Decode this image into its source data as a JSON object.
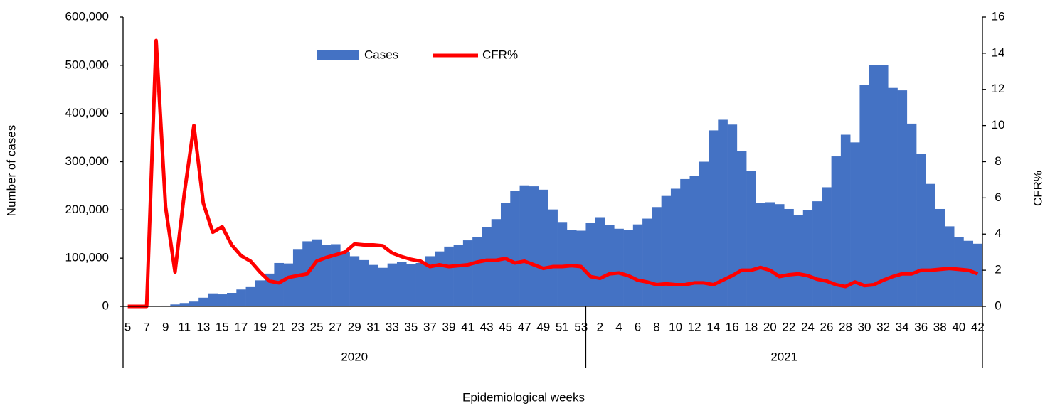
{
  "chart_data": {
    "type": "combo",
    "x_label": "Epidemiological weeks",
    "y_label": "Number of cases",
    "y2_label": "CFR%",
    "categories": [
      "5",
      null,
      "7",
      null,
      "9",
      null,
      "11",
      null,
      "13",
      null,
      "15",
      null,
      "17",
      null,
      "19",
      null,
      "21",
      null,
      "23",
      null,
      "25",
      null,
      "27",
      null,
      "29",
      null,
      "31",
      null,
      "33",
      null,
      "35",
      null,
      "37",
      null,
      "39",
      null,
      "41",
      null,
      "43",
      null,
      "45",
      null,
      "47",
      null,
      "49",
      null,
      "51",
      null,
      "53",
      null,
      "2",
      null,
      "4",
      null,
      "6",
      null,
      "8",
      null,
      "10",
      null,
      "12",
      null,
      "14",
      null,
      "16",
      null,
      "18",
      null,
      "20",
      null,
      "22",
      null,
      "24",
      null,
      "26",
      null,
      "28",
      null,
      "30",
      null,
      "32",
      null,
      "34",
      null,
      "36",
      null,
      "38",
      null,
      "40",
      null,
      "42"
    ],
    "groups": [
      "2020",
      "2021"
    ],
    "series": [
      {
        "name": "Cases",
        "type": "bar",
        "color": "#4472c4",
        "values": [
          0,
          0,
          0,
          1000,
          1500,
          4000,
          7000,
          10000,
          18000,
          27000,
          25000,
          28000,
          35000,
          40000,
          54000,
          68000,
          90000,
          89000,
          119000,
          135000,
          139000,
          127000,
          129000,
          112000,
          104000,
          96000,
          86000,
          80000,
          89000,
          92000,
          87000,
          90000,
          104000,
          114000,
          124000,
          127000,
          137000,
          143000,
          164000,
          181000,
          215000,
          239000,
          251000,
          249000,
          242000,
          201000,
          175000,
          159000,
          157000,
          173000,
          185000,
          169000,
          161000,
          158000,
          170000,
          182000,
          206000,
          229000,
          244000,
          264000,
          271000,
          300000,
          365000,
          387000,
          377000,
          322000,
          281000,
          215000,
          216000,
          212000,
          202000,
          190000,
          200000,
          218000,
          247000,
          311000,
          356000,
          340000,
          459000,
          500000,
          501000,
          453000,
          448000,
          379000,
          316000,
          254000,
          202000,
          166000,
          144000,
          136000,
          130000
        ]
      },
      {
        "name": "CFR%",
        "type": "line",
        "axis": "y2",
        "color": "#ff0000",
        "values": [
          0,
          0,
          0,
          14.7,
          5.5,
          1.9,
          6.3,
          10.0,
          5.7,
          4.1,
          4.4,
          3.4,
          2.8,
          2.5,
          1.9,
          1.4,
          1.3,
          1.6,
          1.7,
          1.8,
          2.5,
          2.7,
          2.85,
          3.0,
          3.45,
          3.4,
          3.4,
          3.35,
          2.95,
          2.75,
          2.6,
          2.5,
          2.2,
          2.3,
          2.2,
          2.25,
          2.3,
          2.45,
          2.55,
          2.55,
          2.65,
          2.4,
          2.5,
          2.3,
          2.1,
          2.2,
          2.2,
          2.25,
          2.2,
          1.65,
          1.55,
          1.8,
          1.85,
          1.7,
          1.45,
          1.35,
          1.2,
          1.25,
          1.2,
          1.2,
          1.3,
          1.3,
          1.2,
          1.45,
          1.7,
          2.0,
          2.0,
          2.15,
          2.0,
          1.65,
          1.75,
          1.8,
          1.7,
          1.5,
          1.4,
          1.2,
          1.1,
          1.35,
          1.15,
          1.2,
          1.45,
          1.65,
          1.8,
          1.8,
          2.0,
          2.0,
          2.05,
          2.1,
          2.05,
          2.0,
          1.8
        ]
      }
    ],
    "ylim": [
      0,
      600000
    ],
    "yticks": [
      0,
      {
        "value": 100000,
        "label": "100,000"
      },
      {
        "value": 200000,
        "label": "200,000"
      },
      {
        "value": 300000,
        "label": "300,000"
      },
      {
        "value": 400000,
        "label": "400,000"
      },
      {
        "value": 500000,
        "label": "500,000"
      },
      {
        "value": 600000,
        "label": "600,000"
      }
    ],
    "y2lim": [
      0,
      16
    ],
    "y2ticks": [
      0,
      2,
      4,
      6,
      8,
      10,
      12,
      14,
      16
    ],
    "grid": false,
    "legend": "top"
  }
}
